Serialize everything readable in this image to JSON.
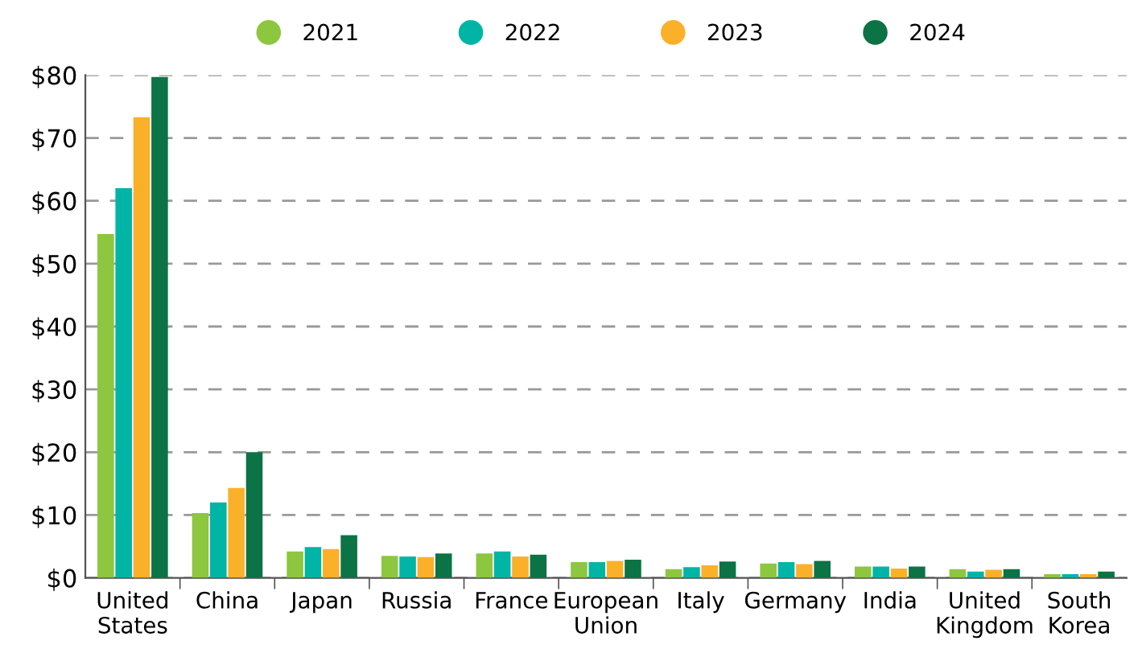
{
  "chart_data": {
    "type": "bar",
    "categories": [
      "United\nStates",
      "China",
      "Japan",
      "Russia",
      "France",
      "European\nUnion",
      "Italy",
      "Germany",
      "India",
      "United\nKingdom",
      "South\nKorea"
    ],
    "series": [
      {
        "name": "2021",
        "color": "#8dc63f",
        "values": [
          54.7,
          10.3,
          4.2,
          3.5,
          3.9,
          2.5,
          1.4,
          2.3,
          1.8,
          1.4,
          0.6
        ]
      },
      {
        "name": "2022",
        "color": "#00b5a5",
        "values": [
          62,
          12,
          4.9,
          3.4,
          4.2,
          2.5,
          1.7,
          2.5,
          1.8,
          1.0,
          0.6
        ]
      },
      {
        "name": "2023",
        "color": "#fbb02a",
        "values": [
          73.3,
          14.3,
          4.6,
          3.3,
          3.4,
          2.7,
          2.0,
          2.2,
          1.5,
          1.3,
          0.6
        ]
      },
      {
        "name": "2024",
        "color": "#0b7345",
        "values": [
          79.7,
          20,
          6.8,
          3.9,
          3.7,
          2.9,
          2.6,
          2.7,
          1.8,
          1.4,
          1.0
        ]
      }
    ],
    "ylim": [
      0,
      80
    ],
    "yticks": [
      {
        "value": 0,
        "label": "$0"
      },
      {
        "value": 10,
        "label": "$10"
      },
      {
        "value": 20,
        "label": "$20"
      },
      {
        "value": 30,
        "label": "$30"
      },
      {
        "value": 40,
        "label": "$40"
      },
      {
        "value": 50,
        "label": "$50"
      },
      {
        "value": 60,
        "label": "$60"
      },
      {
        "value": 70,
        "label": "$70"
      },
      {
        "value": 80,
        "label": "$80"
      }
    ],
    "grid": "y",
    "legend": "top"
  }
}
